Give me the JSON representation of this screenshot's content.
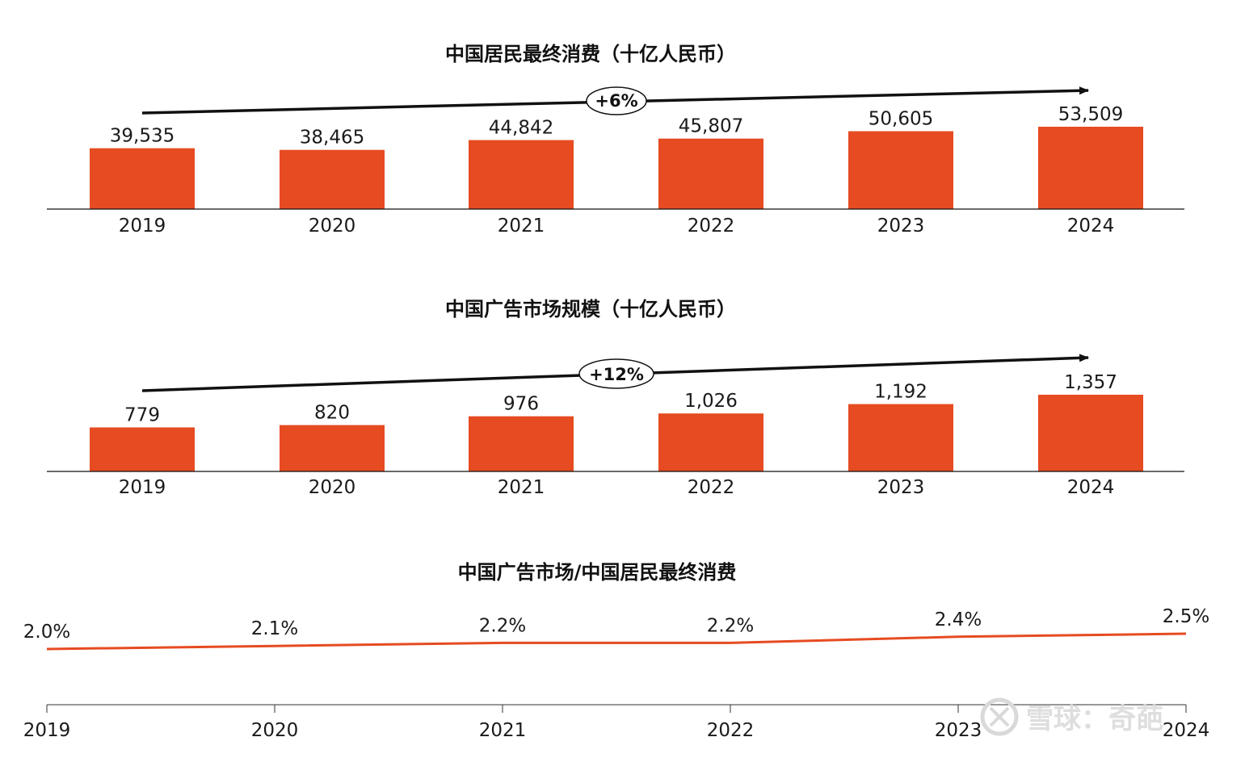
{
  "chart_data": [
    {
      "type": "bar",
      "title": "中国居民最终消费（十亿人民币）",
      "categories": [
        "2019",
        "2020",
        "2021",
        "2022",
        "2023",
        "2024"
      ],
      "values": [
        39535,
        38465,
        44842,
        45807,
        50605,
        53509
      ],
      "value_labels": [
        "39,535",
        "38,465",
        "44,842",
        "45,807",
        "50,605",
        "53,509"
      ],
      "growth_label": "+6%",
      "color": "#E64B21",
      "xlabel": "",
      "ylabel": "",
      "ylim": [
        0,
        53509
      ],
      "grid": false
    },
    {
      "type": "bar",
      "title": "中国广告市场规模（十亿人民币）",
      "categories": [
        "2019",
        "2020",
        "2021",
        "2022",
        "2023",
        "2024"
      ],
      "values": [
        779,
        820,
        976,
        1026,
        1192,
        1357
      ],
      "value_labels": [
        "779",
        "820",
        "976",
        "1,026",
        "1,192",
        "1,357"
      ],
      "growth_label": "+12%",
      "color": "#E64B21",
      "xlabel": "",
      "ylabel": "",
      "ylim": [
        0,
        1357
      ],
      "grid": false
    },
    {
      "type": "line",
      "title": "中国广告市场/中国居民最终消费",
      "categories": [
        "2019",
        "2020",
        "2021",
        "2022",
        "2023",
        "2024"
      ],
      "values": [
        2.0,
        2.1,
        2.2,
        2.2,
        2.4,
        2.5
      ],
      "value_labels": [
        "2.0%",
        "2.1%",
        "2.2%",
        "2.2%",
        "2.4%",
        "2.5%"
      ],
      "color": "#E64B21",
      "xlabel": "",
      "ylabel": "",
      "grid": false
    }
  ],
  "watermark": {
    "text": "雪球：奇葩"
  }
}
